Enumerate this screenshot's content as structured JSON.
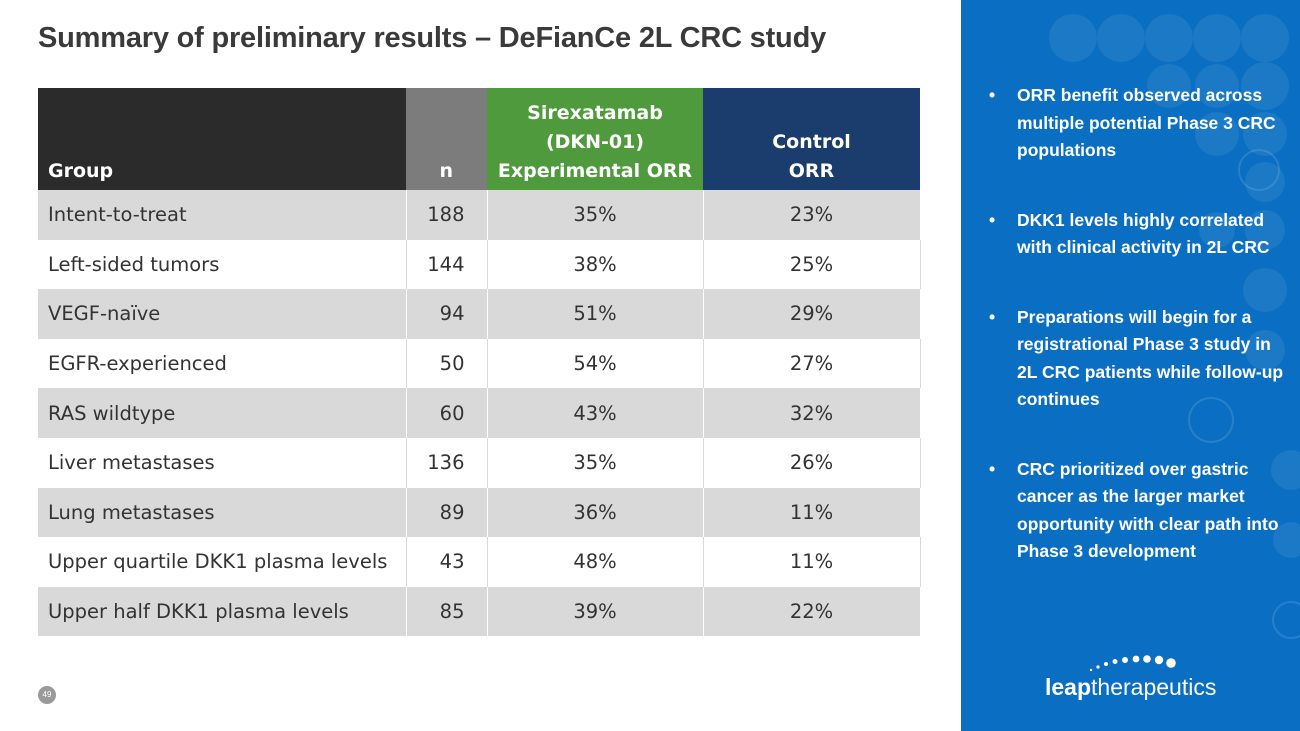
{
  "title": "Summary of preliminary results – DeFianCe 2L CRC study",
  "table": {
    "headers": {
      "group": "Group",
      "n": "n",
      "sirex_line1": "Sirexatamab",
      "sirex_line2": "(DKN-01)",
      "sirex_line3": "Experimental ORR",
      "control_line1": "Control",
      "control_line2": "ORR"
    },
    "rows": [
      {
        "group": "Intent-to-treat",
        "n": "188",
        "sirex": "35%",
        "control": "23%"
      },
      {
        "group": "Left-sided tumors",
        "n": "144",
        "sirex": "38%",
        "control": "25%"
      },
      {
        "group": "VEGF-naïve",
        "n": "94",
        "sirex": "51%",
        "control": "29%"
      },
      {
        "group": "EGFR-experienced",
        "n": "50",
        "sirex": "54%",
        "control": "27%"
      },
      {
        "group": "RAS wildtype",
        "n": "60",
        "sirex": "43%",
        "control": "32%"
      },
      {
        "group": "Liver metastases",
        "n": "136",
        "sirex": "35%",
        "control": "26%"
      },
      {
        "group": "Lung metastases",
        "n": "89",
        "sirex": "36%",
        "control": "11%"
      },
      {
        "group": "Upper quartile DKK1 plasma levels",
        "n": "43",
        "sirex": "48%",
        "control": "11%"
      },
      {
        "group": "Upper half DKK1 plasma levels",
        "n": "85",
        "sirex": "39%",
        "control": "22%"
      }
    ]
  },
  "sidebar": {
    "bullets": [
      "ORR benefit observed across multiple potential Phase 3 CRC populations",
      "DKK1 levels highly correlated with clinical activity in 2L CRC",
      "Preparations will begin for a registrational Phase 3 study in 2L CRC patients while follow-up continues",
      "CRC prioritized over gastric cancer as the larger market opportunity with clear path into Phase 3 development"
    ],
    "bullet_symbol": "•"
  },
  "logo": {
    "bold": "leap",
    "regular": "therapeutics"
  },
  "page_number": "49",
  "colors": {
    "header_group": "#2b2b2b",
    "header_n": "#7c7c7c",
    "header_sirex": "#4f9a3c",
    "header_control": "#1b3d6d",
    "panel": "#0a6fc2",
    "row_shade": "#d9d9d9"
  }
}
